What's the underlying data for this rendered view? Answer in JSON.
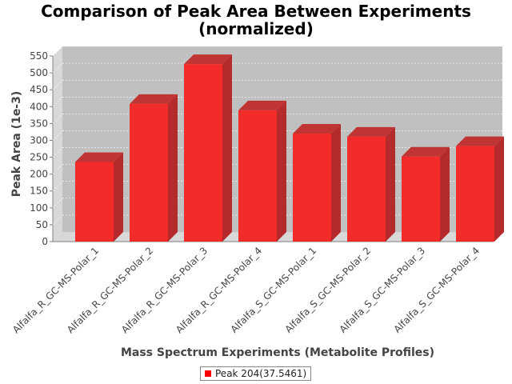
{
  "chart_data": {
    "type": "bar",
    "title_line1": "Comparison of Peak Area Between Experiments",
    "title_line2": "(normalized)",
    "xlabel": "Mass Spectrum Experiments (Metabolite Profiles)",
    "ylabel": "Peak Area (1e-3)",
    "ylim": [
      0,
      550
    ],
    "yticks": [
      0,
      50,
      100,
      150,
      200,
      250,
      300,
      350,
      400,
      450,
      500,
      550
    ],
    "categories": [
      "Alfalfa_R_GC-MS-Polar_1",
      "Alfalfa_R_GC-MS-Polar_2",
      "Alfalfa_R_GC-MS-Polar_3",
      "Alfalfa_R_GC-MS-Polar_4",
      "Alfalfa_S_GC-MS-Polar_1",
      "Alfalfa_S_GC-MS-Polar_2",
      "Alfalfa_S_GC-MS-Polar_3",
      "Alfalfa_S_GC-MS-Polar_4"
    ],
    "series": [
      {
        "name": "Peak 204(37.5461)",
        "color": "#ff0000",
        "values": [
          236,
          408,
          526,
          389,
          320,
          311,
          252,
          283
        ]
      }
    ],
    "grid": true,
    "legend_position": "bottom"
  }
}
